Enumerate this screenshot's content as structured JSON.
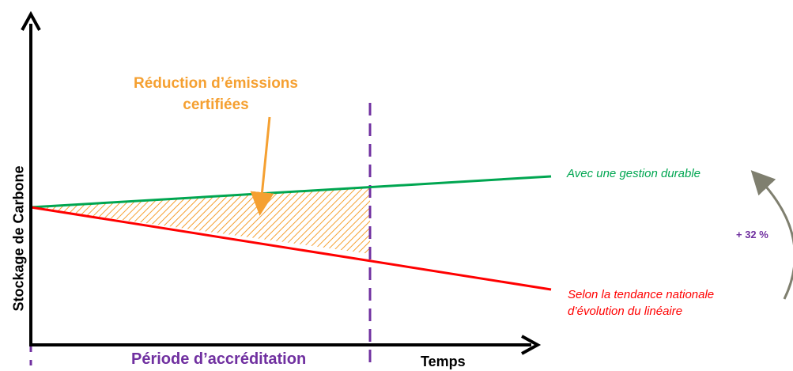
{
  "diagram": {
    "annotation_reduction": [
      "Réduction d’émissions",
      "certifiées"
    ],
    "y_axis_label": "Stockage de Carbone",
    "x_axis_label": "Temps",
    "period_label": "Période d’accréditation",
    "line_sustainable_label": "Avec une gestion durable",
    "line_trend_label": [
      "Selon la tendance nationale",
      "d’évolution du linéaire"
    ],
    "difference_label": "+ 32 %",
    "colors": {
      "sustainable_line": "#00a651",
      "trend_line": "#ff0000",
      "reduction_area": "#f5a031",
      "period_marker": "#7030a0",
      "axes": "#000000",
      "curved_arrow": "#7f7f6f"
    }
  }
}
